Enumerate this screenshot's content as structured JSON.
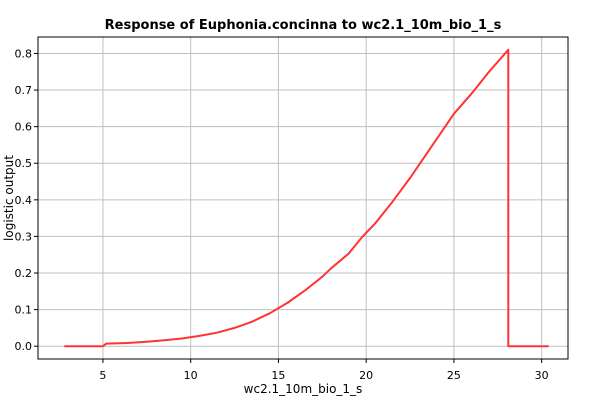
{
  "chart_data": {
    "type": "line",
    "title": "Response of Euphonia.concinna to wc2.1_10m_bio_1_s",
    "xlabel": "wc2.1_10m_bio_1_s",
    "ylabel": "logistic output",
    "xlim": [
      1.3,
      31.5
    ],
    "ylim": [
      -0.035,
      0.845
    ],
    "xticks": [
      5,
      10,
      15,
      20,
      25,
      30
    ],
    "yticks": [
      0.0,
      0.1,
      0.2,
      0.3,
      0.4,
      0.5,
      0.6,
      0.7,
      0.8
    ],
    "grid": true,
    "series": [
      {
        "color": "#ff3333",
        "x": [
          2.8,
          5.0,
          5.2,
          6.5,
          7.5,
          8.5,
          9.5,
          10.5,
          11.5,
          12.5,
          13.5,
          14.5,
          15.5,
          16.5,
          17.5,
          18.0,
          19.0,
          19.8,
          20.5,
          21.5,
          22.5,
          23.5,
          24.5,
          25.0,
          26.0,
          27.0,
          28.1,
          28.1,
          30.4
        ],
        "y": [
          0.0,
          0.0,
          0.007,
          0.009,
          0.012,
          0.016,
          0.021,
          0.028,
          0.037,
          0.05,
          0.067,
          0.09,
          0.118,
          0.152,
          0.19,
          0.213,
          0.253,
          0.3,
          0.335,
          0.395,
          0.46,
          0.53,
          0.6,
          0.635,
          0.69,
          0.75,
          0.81,
          0.0,
          0.0
        ]
      }
    ]
  }
}
